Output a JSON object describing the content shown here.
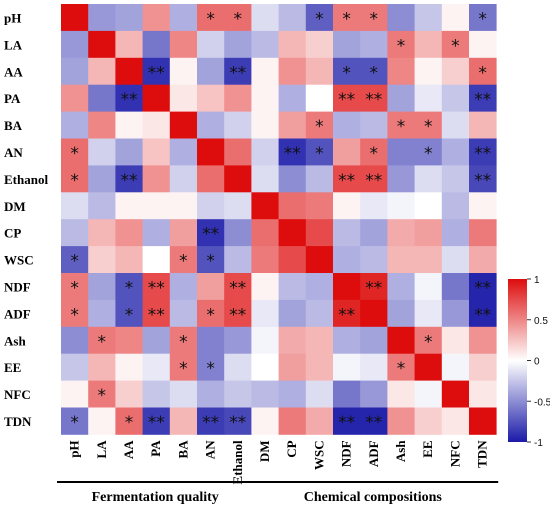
{
  "chart_data": {
    "type": "heatmap",
    "row_labels": [
      "pH",
      "LA",
      "AA",
      "PA",
      "BA",
      "AN",
      "Ethanol",
      "DM",
      "CP",
      "WSC",
      "NDF",
      "ADF",
      "Ash",
      "EE",
      "NFC",
      "TDN"
    ],
    "col_labels": [
      "pH",
      "LA",
      "AA",
      "PA",
      "BA",
      "AN",
      "Ethanol",
      "DM",
      "CP",
      "WSC",
      "NDF",
      "ADF",
      "Ash",
      "EE",
      "NFC",
      "TDN"
    ],
    "values": [
      [
        1.0,
        -0.45,
        -0.4,
        0.45,
        -0.35,
        0.6,
        0.6,
        -0.15,
        -0.3,
        -0.7,
        0.55,
        0.55,
        -0.5,
        -0.25,
        0.05,
        -0.6
      ],
      [
        -0.45,
        1.0,
        0.3,
        -0.6,
        0.5,
        -0.2,
        -0.4,
        -0.3,
        0.3,
        0.2,
        -0.4,
        -0.35,
        0.55,
        0.3,
        0.55,
        0.05
      ],
      [
        -0.4,
        0.3,
        1.0,
        -0.9,
        0.05,
        -0.4,
        -0.85,
        0.05,
        0.45,
        0.3,
        -0.75,
        -0.75,
        0.5,
        0.05,
        0.2,
        0.6
      ],
      [
        0.45,
        -0.6,
        -0.9,
        1.0,
        0.1,
        0.25,
        0.45,
        0.05,
        -0.35,
        0.0,
        0.75,
        0.75,
        -0.4,
        -0.1,
        -0.25,
        -0.85
      ],
      [
        -0.35,
        0.5,
        0.05,
        0.1,
        1.0,
        -0.35,
        -0.2,
        0.05,
        0.4,
        0.55,
        -0.35,
        -0.3,
        0.55,
        0.55,
        -0.15,
        0.3
      ],
      [
        0.6,
        -0.2,
        -0.4,
        0.25,
        -0.35,
        1.0,
        0.6,
        -0.2,
        -0.9,
        -0.75,
        0.4,
        0.6,
        -0.55,
        -0.55,
        -0.35,
        -0.85
      ],
      [
        0.6,
        -0.4,
        -0.85,
        0.45,
        -0.2,
        0.6,
        1.0,
        -0.15,
        -0.5,
        -0.3,
        0.75,
        0.75,
        -0.45,
        -0.15,
        -0.25,
        -0.8
      ],
      [
        -0.15,
        -0.3,
        0.05,
        0.05,
        0.05,
        -0.2,
        -0.15,
        1.0,
        0.6,
        0.55,
        0.05,
        -0.1,
        -0.05,
        0.0,
        -0.3,
        0.05
      ],
      [
        -0.3,
        0.3,
        0.45,
        -0.35,
        0.4,
        -0.9,
        -0.5,
        0.6,
        1.0,
        0.75,
        -0.3,
        -0.4,
        0.35,
        0.4,
        -0.35,
        0.55
      ],
      [
        -0.7,
        0.2,
        0.3,
        0.0,
        0.55,
        -0.75,
        -0.3,
        0.55,
        0.75,
        1.0,
        -0.35,
        -0.3,
        0.3,
        0.3,
        -0.15,
        0.35
      ],
      [
        0.55,
        -0.4,
        -0.75,
        0.75,
        -0.35,
        0.4,
        0.75,
        0.05,
        -0.3,
        -0.35,
        1.0,
        0.9,
        -0.35,
        -0.05,
        -0.6,
        -0.95
      ],
      [
        0.55,
        -0.35,
        -0.75,
        0.75,
        -0.3,
        0.6,
        0.75,
        -0.1,
        -0.4,
        -0.3,
        0.9,
        1.0,
        -0.4,
        -0.1,
        -0.45,
        -0.95
      ],
      [
        -0.5,
        0.55,
        0.5,
        -0.4,
        0.55,
        -0.55,
        -0.45,
        -0.05,
        0.35,
        0.3,
        -0.35,
        -0.4,
        1.0,
        0.55,
        0.1,
        0.45
      ],
      [
        -0.25,
        0.3,
        0.05,
        -0.1,
        0.55,
        -0.55,
        -0.15,
        0.0,
        0.4,
        0.3,
        -0.05,
        -0.1,
        0.55,
        1.0,
        -0.05,
        0.2
      ],
      [
        0.05,
        0.55,
        0.2,
        -0.25,
        -0.15,
        -0.35,
        -0.25,
        -0.3,
        -0.35,
        -0.15,
        -0.6,
        -0.45,
        0.1,
        -0.05,
        1.0,
        0.1
      ],
      [
        -0.6,
        0.05,
        0.6,
        -0.85,
        0.3,
        -0.85,
        -0.8,
        0.05,
        0.55,
        0.35,
        -0.95,
        -0.95,
        0.45,
        0.2,
        0.1,
        1.0
      ]
    ],
    "significance": [
      [
        "",
        "",
        "",
        "",
        "",
        "*",
        "*",
        "",
        "",
        "*",
        "*",
        "*",
        "",
        "",
        "",
        "*"
      ],
      [
        "",
        "",
        "",
        "",
        "",
        "",
        "",
        "",
        "",
        "",
        "",
        "",
        "*",
        "",
        "*",
        ""
      ],
      [
        "",
        "",
        "",
        "**",
        "",
        "",
        "**",
        "",
        "",
        "",
        "*",
        "*",
        "",
        "",
        "",
        "*"
      ],
      [
        "",
        "",
        "**",
        "",
        "",
        "",
        "",
        "",
        "",
        "",
        "**",
        "**",
        "",
        "",
        "",
        "**"
      ],
      [
        "",
        "",
        "",
        "",
        "",
        "",
        "",
        "",
        "",
        "*",
        "",
        "",
        "*",
        "*",
        "",
        ""
      ],
      [
        "*",
        "",
        "",
        "",
        "",
        "",
        "",
        "",
        "**",
        "*",
        "",
        "*",
        "",
        "*",
        "",
        "**"
      ],
      [
        "*",
        "",
        "**",
        "",
        "",
        "",
        "",
        "",
        "",
        "",
        "**",
        "**",
        "",
        "",
        "",
        "**"
      ],
      [
        "",
        "",
        "",
        "",
        "",
        "",
        "",
        "",
        "",
        "",
        "",
        "",
        "",
        "",
        "",
        ""
      ],
      [
        "",
        "",
        "",
        "",
        "",
        "**",
        "",
        "",
        "",
        "",
        "",
        "",
        "",
        "",
        "",
        ""
      ],
      [
        "*",
        "",
        "",
        "",
        "*",
        "*",
        "",
        "",
        "",
        "",
        "",
        "",
        "",
        "",
        "",
        ""
      ],
      [
        "*",
        "",
        "*",
        "**",
        "",
        "",
        "**",
        "",
        "",
        "",
        "",
        "**",
        "",
        "",
        "",
        "**"
      ],
      [
        "*",
        "",
        "*",
        "**",
        "",
        "*",
        "**",
        "",
        "",
        "",
        "**",
        "",
        "",
        "",
        "",
        "**"
      ],
      [
        "",
        "*",
        "",
        "",
        "*",
        "",
        "",
        "",
        "",
        "",
        "",
        "",
        "",
        "*",
        "",
        ""
      ],
      [
        "",
        "",
        "",
        "",
        "*",
        "*",
        "",
        "",
        "",
        "",
        "",
        "",
        "*",
        "",
        "",
        ""
      ],
      [
        "",
        "*",
        "",
        "",
        "",
        "",
        "",
        "",
        "",
        "",
        "",
        "",
        "",
        "",
        "",
        ""
      ],
      [
        "*",
        "",
        "*",
        "**",
        "",
        "**",
        "**",
        "",
        "",
        "",
        "**",
        "**",
        "",
        "",
        "",
        ""
      ]
    ],
    "colorbar": {
      "range": [
        -1,
        1
      ],
      "ticks": [
        "1",
        "0.5",
        "0",
        "-0.5",
        "-1"
      ],
      "colors": {
        "negative": "#1a1aa8",
        "neutral": "#ffffff",
        "positive": "#dd0d0d"
      }
    },
    "groups": [
      {
        "label": "Fermentation quality",
        "from_col": 0,
        "to_col": 6
      },
      {
        "label": "Chemical compositions",
        "from_col": 7,
        "to_col": 15
      }
    ]
  }
}
